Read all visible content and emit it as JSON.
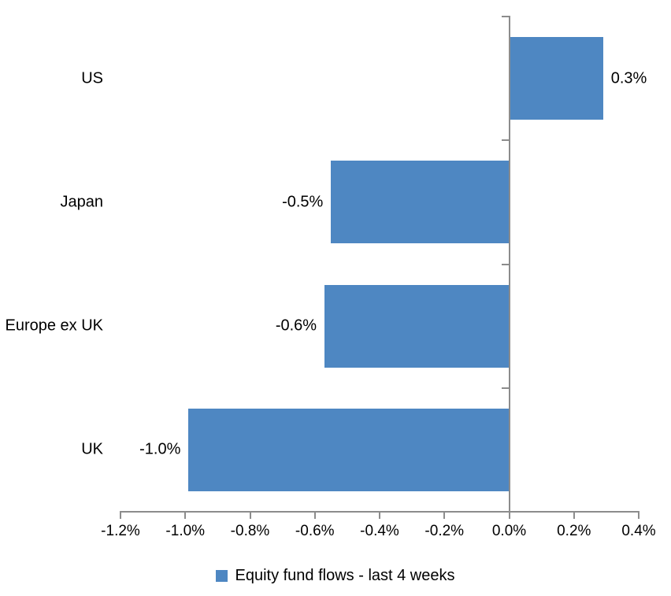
{
  "chart_data": {
    "type": "bar",
    "orientation": "horizontal",
    "categories": [
      "US",
      "Japan",
      "Europe ex UK",
      "UK"
    ],
    "values": [
      0.3,
      -0.5,
      -0.6,
      -1.0
    ],
    "values_precise_pct": [
      0.29,
      -0.55,
      -0.57,
      -0.99
    ],
    "value_labels": [
      "0.3%",
      "-0.5%",
      "-0.6%",
      "-1.0%"
    ],
    "x_axis": {
      "min_pct": -1.2,
      "max_pct": 0.4,
      "tick_step_pct": 0.2,
      "tick_labels": [
        "-1.2%",
        "-1.0%",
        "-0.8%",
        "-0.6%",
        "-0.4%",
        "-0.2%",
        "0.0%",
        "0.2%",
        "0.4%"
      ]
    },
    "legend": {
      "position": "bottom",
      "label": "Equity fund flows - last 4 weeks"
    },
    "colors": {
      "bar": "#4E87C2",
      "axis": "#8C8C8C",
      "text": "#000000",
      "background": "#FFFFFF"
    },
    "grid": false,
    "data_label_position": "outside-end"
  }
}
